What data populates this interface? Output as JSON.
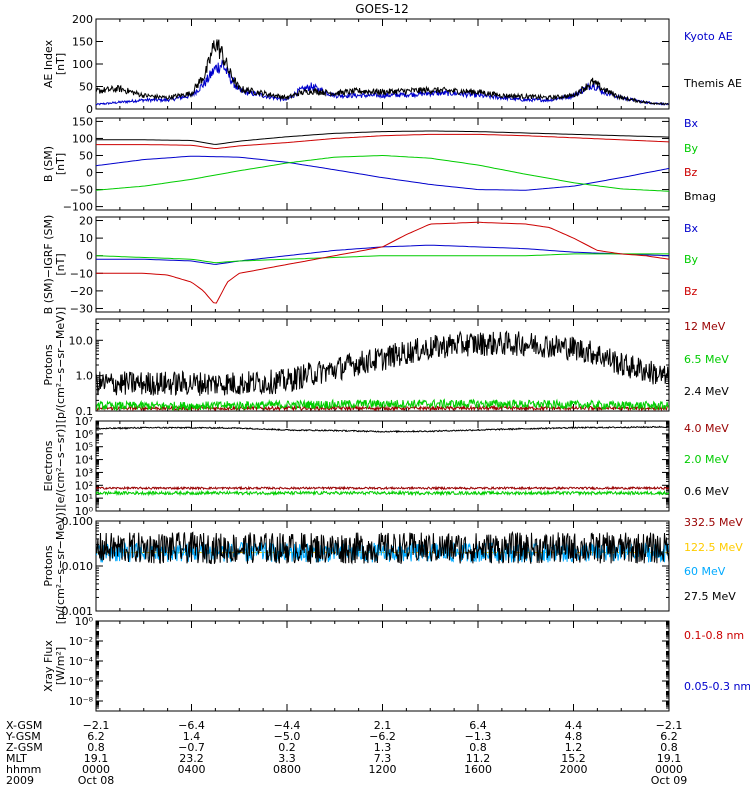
{
  "title": "GOES-12",
  "time_axis": {
    "range_hours": [
      0,
      24
    ],
    "tick_hours": [
      0,
      4,
      8,
      12,
      16,
      20,
      24
    ],
    "minor_per_major": 4
  },
  "chart_data": [
    {
      "id": "ae",
      "type": "line",
      "ylabel": "AE Index [nT]",
      "ylabel_lines": [
        "AE Index",
        "[nT]"
      ],
      "ylim": [
        0,
        200
      ],
      "log": false,
      "yticks": [
        0,
        50,
        100,
        150,
        200
      ],
      "ytick_labels": [
        "0",
        "50",
        "100",
        "150",
        "200"
      ],
      "series": [
        {
          "name": "Kyoto AE",
          "color": "#0000cc",
          "x": [
            0,
            1,
            2,
            3,
            4,
            4.6,
            5,
            5.3,
            5.6,
            6,
            7,
            8,
            8.5,
            9,
            10,
            11,
            12,
            13,
            14,
            15,
            16,
            17,
            18,
            19,
            20,
            20.8,
            21.2,
            22,
            23,
            24
          ],
          "y": [
            10,
            15,
            20,
            20,
            30,
            60,
            90,
            100,
            70,
            40,
            30,
            20,
            40,
            50,
            30,
            30,
            30,
            32,
            35,
            35,
            30,
            25,
            20,
            20,
            30,
            55,
            40,
            25,
            15,
            10
          ]
        },
        {
          "name": "Themis AE",
          "color": "#000000",
          "x": [
            0,
            1,
            2,
            3,
            4,
            4.6,
            5,
            5.3,
            5.6,
            6,
            7,
            8,
            8.5,
            9,
            10,
            11,
            12,
            13,
            14,
            15,
            16,
            17,
            18,
            19,
            20,
            20.8,
            21.2,
            22,
            23,
            24
          ],
          "y": [
            40,
            45,
            30,
            25,
            35,
            80,
            150,
            120,
            80,
            45,
            35,
            25,
            35,
            40,
            35,
            40,
            38,
            40,
            42,
            40,
            38,
            30,
            28,
            25,
            30,
            60,
            45,
            25,
            15,
            10
          ]
        }
      ]
    },
    {
      "id": "bsm",
      "type": "line",
      "ylabel": "B (SM) [nT]",
      "ylabel_lines": [
        "B (SM)",
        "[nT]"
      ],
      "ylim": [
        -110,
        160
      ],
      "log": false,
      "yticks": [
        -100,
        -50,
        0,
        50,
        100,
        150
      ],
      "ytick_labels": [
        "−100",
        "−50",
        "0",
        "50",
        "100",
        "150"
      ],
      "series": [
        {
          "name": "Bx",
          "color": "#0000cc",
          "x": [
            0,
            2,
            4,
            6,
            8,
            10,
            12,
            14,
            16,
            18,
            20,
            22,
            24
          ],
          "y": [
            20,
            38,
            48,
            45,
            30,
            8,
            -15,
            -35,
            -50,
            -52,
            -40,
            -15,
            12
          ]
        },
        {
          "name": "By",
          "color": "#00cc00",
          "x": [
            0,
            2,
            4,
            6,
            8,
            10,
            12,
            14,
            16,
            18,
            20,
            22,
            24
          ],
          "y": [
            -52,
            -40,
            -20,
            5,
            28,
            45,
            50,
            42,
            22,
            -5,
            -30,
            -48,
            -55
          ]
        },
        {
          "name": "Bz",
          "color": "#cc0000",
          "x": [
            0,
            2,
            4,
            5,
            6,
            8,
            10,
            12,
            14,
            16,
            18,
            20,
            22,
            24
          ],
          "y": [
            82,
            82,
            80,
            70,
            78,
            88,
            100,
            108,
            112,
            112,
            108,
            102,
            96,
            90
          ]
        },
        {
          "name": "Bmag",
          "color": "#000000",
          "x": [
            0,
            2,
            4,
            5,
            6,
            8,
            10,
            12,
            14,
            16,
            18,
            20,
            22,
            24
          ],
          "y": [
            96,
            96,
            94,
            82,
            92,
            105,
            115,
            120,
            122,
            120,
            116,
            112,
            108,
            104
          ]
        }
      ]
    },
    {
      "id": "bres",
      "type": "line",
      "ylabel": "B (SM)-IGRF (SM) [nT]",
      "ylabel_lines": [
        "B (SM)−IGRF (SM)",
        "[nT]"
      ],
      "ylim": [
        -32,
        22
      ],
      "log": false,
      "yticks": [
        -30,
        -20,
        -10,
        0,
        10,
        20
      ],
      "ytick_labels": [
        "−30",
        "−20",
        "−10",
        "0",
        "10",
        "20"
      ],
      "series": [
        {
          "name": "Bx",
          "color": "#0000cc",
          "x": [
            0,
            2,
            4,
            5,
            6,
            8,
            10,
            12,
            14,
            16,
            18,
            20,
            22,
            24
          ],
          "y": [
            -2,
            -2,
            -3,
            -5,
            -3,
            0,
            3,
            5,
            6,
            5,
            4,
            2,
            1,
            0
          ]
        },
        {
          "name": "By",
          "color": "#00cc00",
          "x": [
            0,
            2,
            4,
            5,
            6,
            8,
            10,
            12,
            14,
            16,
            18,
            20,
            22,
            24
          ],
          "y": [
            0,
            -1,
            -2,
            -4,
            -3,
            -2,
            -1,
            0,
            0,
            0,
            0,
            1,
            1,
            1
          ]
        },
        {
          "name": "Bz",
          "color": "#cc0000",
          "x": [
            0,
            2,
            3,
            4,
            4.5,
            5,
            5.5,
            6,
            8,
            10,
            12,
            13,
            14,
            16,
            18,
            19,
            20,
            21,
            22,
            23,
            24
          ],
          "y": [
            -10,
            -10,
            -11,
            -15,
            -20,
            -28,
            -15,
            -10,
            -5,
            0,
            5,
            12,
            18,
            19,
            18,
            16,
            10,
            3,
            1,
            0,
            -2
          ]
        }
      ]
    },
    {
      "id": "protons_hi",
      "type": "line",
      "ylabel": "Protons [p/(cm²-s-sr-MeV)]",
      "ylabel_lines": [
        "Protons",
        "[p/(cm²−s−sr−MeV)]"
      ],
      "ylim": [
        0.1,
        40
      ],
      "log": true,
      "yticks": [
        0.1,
        1,
        10
      ],
      "ytick_labels": [
        "0.1",
        "1.0",
        "10.0"
      ],
      "series": [
        {
          "name": "12 MeV",
          "color": "#990000",
          "x": [
            0,
            4,
            8,
            12,
            16,
            20,
            24
          ],
          "y": [
            0.12,
            0.12,
            0.12,
            0.12,
            0.12,
            0.12,
            0.12
          ]
        },
        {
          "name": "6.5 MeV",
          "color": "#00cc00",
          "x": [
            0,
            4,
            8,
            12,
            16,
            20,
            24
          ],
          "y": [
            0.14,
            0.14,
            0.15,
            0.16,
            0.16,
            0.15,
            0.14
          ]
        },
        {
          "name": "2.4 MeV",
          "color": "#000000",
          "x": [
            0,
            2,
            4,
            6,
            8,
            10,
            12,
            14,
            15,
            16,
            18,
            20,
            22,
            24
          ],
          "y": [
            0.6,
            0.6,
            0.6,
            0.6,
            0.7,
            1.5,
            3,
            6,
            7.5,
            8,
            8,
            6,
            2,
            0.8
          ]
        }
      ]
    },
    {
      "id": "electrons",
      "type": "line",
      "ylabel": "Electrons [e/(cm²-s-sr)]",
      "ylabel_lines": [
        "Electrons",
        "[e/(cm²−s−sr)]"
      ],
      "ylim": [
        1,
        10000000
      ],
      "log": true,
      "yticks": [
        1,
        10,
        100,
        1000,
        10000,
        100000,
        1000000,
        10000000
      ],
      "ytick_labels": [
        "10⁰",
        "10¹",
        "10²",
        "10³",
        "10⁴",
        "10⁵",
        "10⁶",
        "10⁷"
      ],
      "series": [
        {
          "name": "4.0 MeV",
          "color": "#990000",
          "x": [
            0,
            4,
            8,
            12,
            16,
            20,
            24
          ],
          "y": [
            60,
            60,
            60,
            60,
            60,
            60,
            60
          ]
        },
        {
          "name": "2.0 MeV",
          "color": "#00cc00",
          "x": [
            0,
            4,
            8,
            12,
            16,
            20,
            24
          ],
          "y": [
            25,
            25,
            25,
            25,
            25,
            25,
            25
          ]
        },
        {
          "name": "0.6 MeV",
          "color": "#000000",
          "x": [
            0,
            2,
            4,
            6,
            8,
            10,
            12,
            14,
            16,
            18,
            20,
            22,
            24
          ],
          "y": [
            2500000,
            3000000,
            3000000,
            2800000,
            2000000,
            1800000,
            1500000,
            1600000,
            2000000,
            2500000,
            3000000,
            3200000,
            3500000
          ]
        }
      ]
    },
    {
      "id": "protons_lo",
      "type": "line",
      "ylabel": "Protons [p/(cm²-s-sr-MeV)]",
      "ylabel_lines": [
        "Protons",
        "[p/(cm²−s−sr−MeV)]"
      ],
      "ylim": [
        0.001,
        0.1
      ],
      "log": true,
      "yticks": [
        0.001,
        0.01,
        0.1
      ],
      "ytick_labels": [
        "0.001",
        "0.010",
        "0.100"
      ],
      "series": [
        {
          "name": "332.5 MeV",
          "color": "#990000",
          "x": [
            0,
            24
          ],
          "y": [
            0.02,
            0.02
          ]
        },
        {
          "name": "122.5 MeV",
          "color": "#ffcc00",
          "x": [
            0,
            24
          ],
          "y": [
            0.02,
            0.02
          ]
        },
        {
          "name": "60 MeV",
          "color": "#00aaff",
          "x": [
            0,
            4,
            8,
            12,
            16,
            20,
            24
          ],
          "y": [
            0.02,
            0.02,
            0.02,
            0.02,
            0.02,
            0.02,
            0.02
          ]
        },
        {
          "name": "27.5 MeV",
          "color": "#000000",
          "x": [
            0,
            4,
            8,
            12,
            16,
            20,
            24
          ],
          "y": [
            0.025,
            0.025,
            0.025,
            0.025,
            0.025,
            0.025,
            0.025
          ]
        }
      ]
    },
    {
      "id": "xray",
      "type": "line",
      "ylabel": "Xray Flux [W/m²]",
      "ylabel_lines": [
        "Xray Flux",
        "[W/m²]"
      ],
      "ylim": [
        1e-09,
        1
      ],
      "log": true,
      "yticks": [
        1e-08,
        1e-06,
        0.0001,
        0.01,
        1
      ],
      "ytick_labels": [
        "10⁻⁸",
        "10⁻⁶",
        "10⁻⁴",
        "10⁻²",
        "10⁰"
      ],
      "series": [
        {
          "name": "0.1-0.8 nm",
          "color": "#cc0000",
          "x": [],
          "y": []
        },
        {
          "name": "0.05-0.3 nm",
          "color": "#0000cc",
          "x": [],
          "y": []
        }
      ]
    }
  ],
  "orbit_table": {
    "rows": [
      {
        "label": "X-GSM",
        "values": [
          "−2.1",
          "−6.4",
          "−4.4",
          "2.1",
          "6.4",
          "4.4",
          "−2.1"
        ]
      },
      {
        "label": "Y-GSM",
        "values": [
          "6.2",
          "1.4",
          "−5.0",
          "−6.2",
          "−1.3",
          "4.8",
          "6.2"
        ]
      },
      {
        "label": "Z-GSM",
        "values": [
          "0.8",
          "−0.7",
          "0.2",
          "1.3",
          "0.8",
          "1.2",
          "0.8"
        ]
      },
      {
        "label": "MLT",
        "values": [
          "19.1",
          "23.2",
          "3.3",
          "7.3",
          "11.2",
          "15.2",
          "19.1"
        ]
      },
      {
        "label": "hhmm",
        "values": [
          "0000",
          "0400",
          "0800",
          "1200",
          "1600",
          "2000",
          "0000"
        ]
      },
      {
        "label": "2009",
        "values": [
          "Oct 08",
          "",
          "",
          "",
          "",
          "",
          "Oct 09"
        ]
      }
    ]
  }
}
